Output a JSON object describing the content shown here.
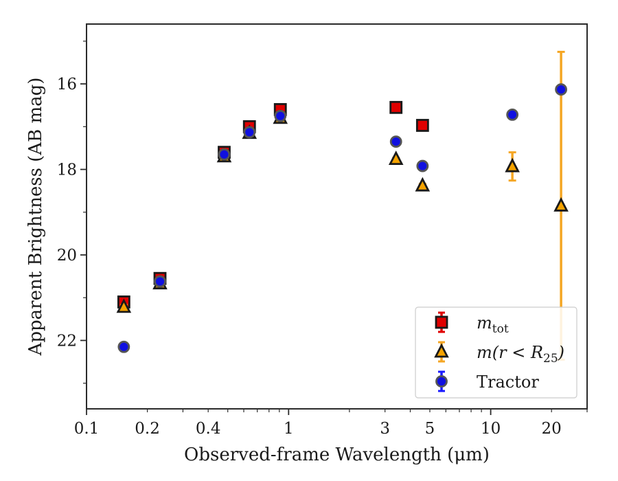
{
  "chart_data": {
    "type": "scatter",
    "xlabel": "Observed-frame Wavelength (μm)",
    "ylabel": "Apparent Brightness (AB mag)",
    "x_scale": "log",
    "y_inverted": true,
    "xlim": [
      0.1,
      30
    ],
    "ylim": [
      23.6,
      14.6
    ],
    "x_ticks": [
      0.1,
      0.2,
      0.4,
      1,
      3,
      5,
      10,
      20
    ],
    "x_tick_labels": [
      "0.1",
      "0.2",
      "0.4",
      "1",
      "3",
      "5",
      "10",
      "20"
    ],
    "y_ticks": [
      16,
      18,
      20,
      22
    ],
    "y_tick_labels": [
      "16",
      "18",
      "20",
      "22"
    ],
    "grid": false,
    "legend_position": "lower right",
    "series": [
      {
        "name": "m_tot",
        "legend_label": "m",
        "legend_sub": "tot",
        "marker": "square",
        "color": "#e00000",
        "edge_color": "#1a1a1a",
        "error_color": "#e00000",
        "points": [
          {
            "x": 0.153,
            "y": 21.1,
            "err": 0.08
          },
          {
            "x": 0.231,
            "y": 20.55,
            "err": 0.08
          },
          {
            "x": 0.48,
            "y": 17.6,
            "err": 0.05
          },
          {
            "x": 0.64,
            "y": 17.0,
            "err": 0.05
          },
          {
            "x": 0.91,
            "y": 16.6,
            "err": 0.05
          },
          {
            "x": 3.4,
            "y": 16.55,
            "err": 0.04
          },
          {
            "x": 4.6,
            "y": 16.97,
            "err": 0.04
          }
        ]
      },
      {
        "name": "m(r < R25)",
        "legend_label": "m(r < R",
        "legend_sub": "25",
        "legend_suffix": ")",
        "marker": "triangle",
        "color": "#f5a300",
        "edge_color": "#1a1a1a",
        "error_color": "#f5a623",
        "points": [
          {
            "x": 0.153,
            "y": 21.22,
            "err": 0.05
          },
          {
            "x": 0.231,
            "y": 20.67,
            "err": 0.05
          },
          {
            "x": 0.48,
            "y": 17.7,
            "err": 0.03
          },
          {
            "x": 0.64,
            "y": 17.15,
            "err": 0.03
          },
          {
            "x": 0.91,
            "y": 16.8,
            "err": 0.03
          },
          {
            "x": 3.4,
            "y": 17.76,
            "err": 0.03
          },
          {
            "x": 4.6,
            "y": 18.38,
            "err": 0.04
          },
          {
            "x": 12.8,
            "y": 17.93,
            "err": 0.33
          },
          {
            "x": 22.3,
            "y": 18.85,
            "err": 3.6
          }
        ]
      },
      {
        "name": "Tractor",
        "legend_label": "Tractor",
        "marker": "circle",
        "color": "#1010e0",
        "edge_color": "#555555",
        "error_color": "#1a1aff",
        "points": [
          {
            "x": 0.153,
            "y": 22.15,
            "err": 0.08
          },
          {
            "x": 0.231,
            "y": 20.62,
            "err": 0.05
          },
          {
            "x": 0.48,
            "y": 17.65,
            "err": 0.03
          },
          {
            "x": 0.64,
            "y": 17.13,
            "err": 0.03
          },
          {
            "x": 0.91,
            "y": 16.75,
            "err": 0.03
          },
          {
            "x": 3.4,
            "y": 17.35,
            "err": 0.03
          },
          {
            "x": 4.6,
            "y": 17.92,
            "err": 0.04
          },
          {
            "x": 12.8,
            "y": 16.72,
            "err": 0.08
          },
          {
            "x": 22.3,
            "y": 16.13,
            "err": 0.05
          }
        ]
      }
    ]
  }
}
